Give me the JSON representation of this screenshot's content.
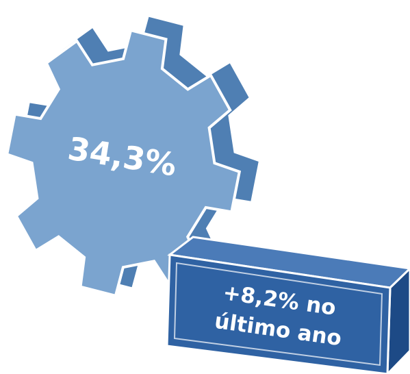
{
  "gear_value": "34,3%",
  "change_box": {
    "lines": [
      "+8,2% no",
      "último ano"
    ]
  }
}
